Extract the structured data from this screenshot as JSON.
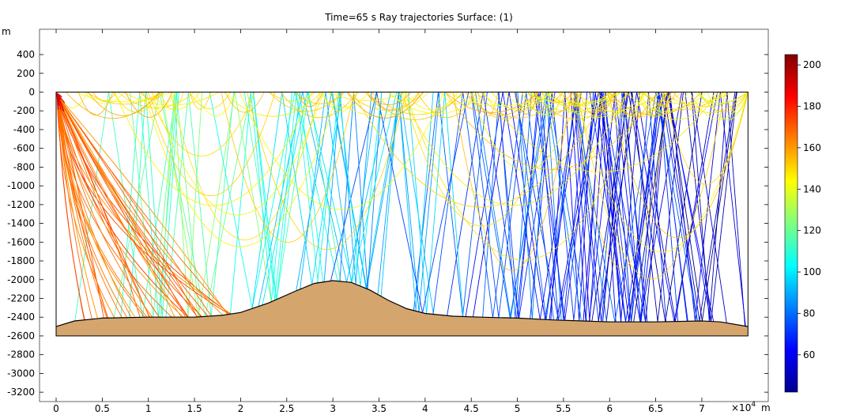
{
  "chart_data": {
    "type": "line",
    "title": "Time=65 s  Ray trajectories  Surface: (1)",
    "y_unit_label": "m",
    "x_unit_label": "m",
    "x_multiplier": "×10",
    "x_multiplier_exp": "4",
    "xlim": [
      -0.18,
      7.72
    ],
    "ylim": [
      -3300,
      670
    ],
    "x_ticks": [
      0,
      0.5,
      1,
      1.5,
      2,
      2.5,
      3,
      3.5,
      4,
      4.5,
      5,
      5.5,
      6,
      6.5,
      7
    ],
    "x_tick_labels": [
      "0",
      "0.5",
      "1",
      "1.5",
      "2",
      "2.5",
      "3",
      "3.5",
      "4",
      "4.5",
      "5",
      "5.5",
      "6",
      "6.5",
      "7"
    ],
    "y_ticks": [
      400,
      200,
      0,
      -200,
      -400,
      -600,
      -800,
      -1000,
      -1200,
      -1400,
      -1600,
      -1800,
      -2000,
      -2200,
      -2400,
      -2600,
      -2800,
      -3000,
      -3200
    ],
    "y_tick_labels": [
      "400",
      "200",
      "0",
      "-200",
      "-400",
      "-600",
      "-800",
      "-1000",
      "-1200",
      "-1400",
      "-1600",
      "-1800",
      "-2000",
      "-2200",
      "-2400",
      "-2600",
      "-2800",
      "-3000",
      "-3200"
    ],
    "domain": {
      "x": [
        0,
        7.5
      ],
      "surface_y": 0,
      "bottom_y": -2600
    },
    "seabed_profile": {
      "x": [
        0,
        0.2,
        0.5,
        1.0,
        1.5,
        1.8,
        2.0,
        2.3,
        2.6,
        2.8,
        3.0,
        3.2,
        3.4,
        3.6,
        3.8,
        4.0,
        4.3,
        4.6,
        5.0,
        5.4,
        5.7,
        6.0,
        6.5,
        7.0,
        7.2,
        7.5
      ],
      "y": [
        -2500,
        -2440,
        -2410,
        -2400,
        -2400,
        -2380,
        -2350,
        -2250,
        -2120,
        -2040,
        -2010,
        -2030,
        -2110,
        -2220,
        -2310,
        -2360,
        -2390,
        -2400,
        -2410,
        -2430,
        -2440,
        -2450,
        -2450,
        -2440,
        -2450,
        -2500
      ]
    },
    "seabed_color": "#d4a66e",
    "colorbar": {
      "min": 42,
      "max": 205,
      "ticks": [
        60,
        80,
        100,
        120,
        140,
        160,
        180,
        200
      ],
      "tick_labels": [
        "60",
        "80",
        "100",
        "120",
        "140",
        "160",
        "180",
        "200"
      ],
      "colormap": "jet"
    }
  }
}
